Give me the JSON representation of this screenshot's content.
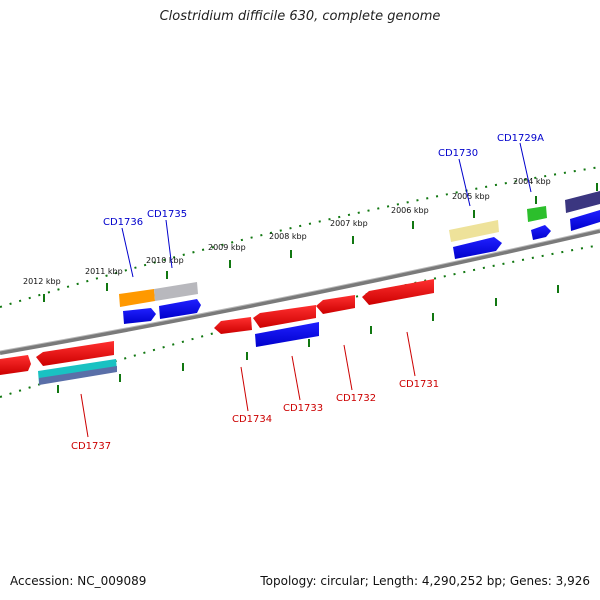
{
  "title": "Clostridium difficile 630, complete genome",
  "footer": {
    "accession": "Accession: NC_009089",
    "topology": "Topology: circular; Length: 4,290,252 bp; Genes: 3,926"
  },
  "ruler_labels": [
    "2012 kbp",
    "2011 kbp",
    "2010 kbp",
    "2009 kbp",
    "2008 kbp",
    "2007 kbp",
    "2006 kbp",
    "2005 kbp",
    "2004 kbp"
  ],
  "genes_top": [
    "CD1736",
    "CD1735",
    "CD1730",
    "CD1729A"
  ],
  "genes_bottom": [
    "CD1737",
    "CD1734",
    "CD1733",
    "CD1732",
    "CD1731"
  ],
  "colors": {
    "top_label": "#0000cc",
    "bottom_label": "#cc0000",
    "ruler": "#117711",
    "backbone": "#7a7a7a"
  }
}
